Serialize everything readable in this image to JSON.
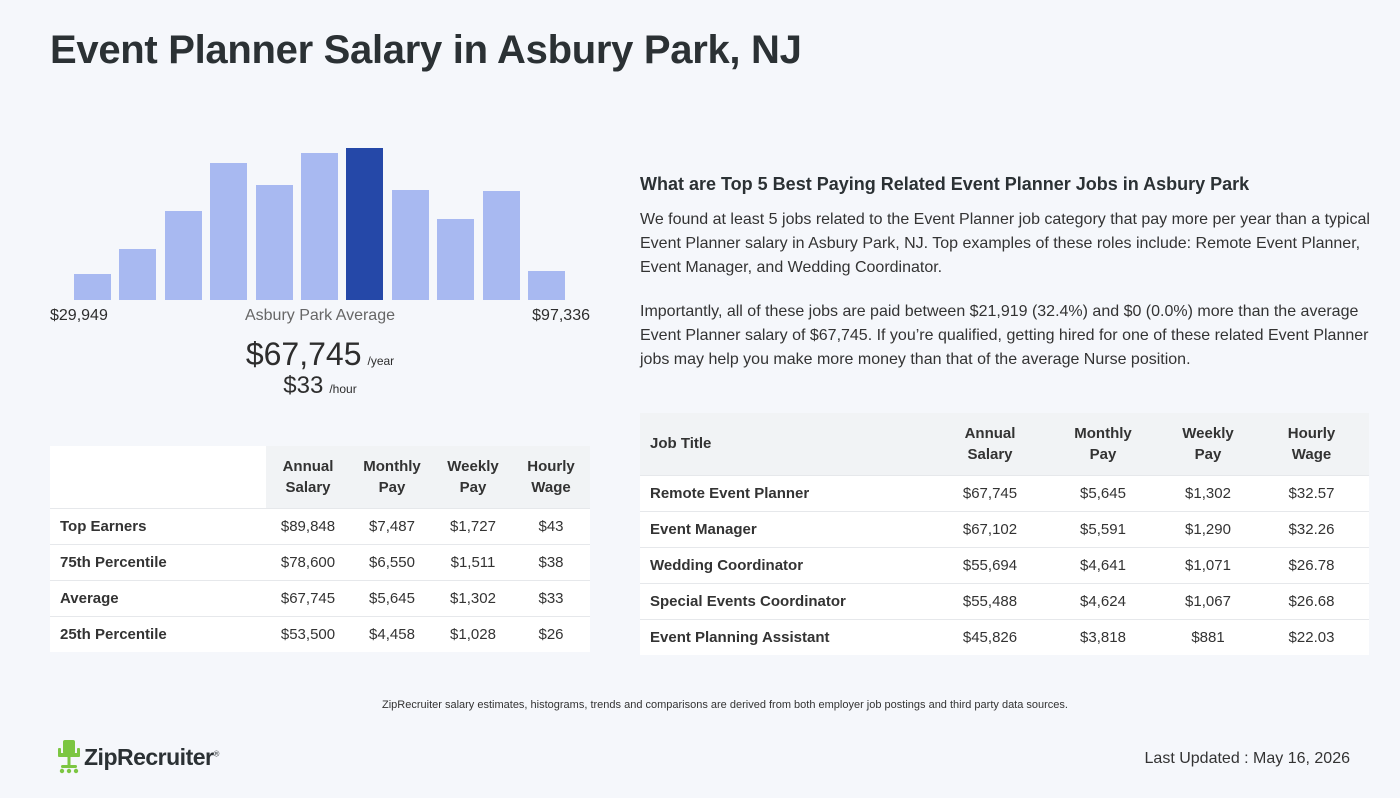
{
  "page": {
    "title": "Event Planner Salary in Asbury Park, NJ"
  },
  "chart_data": {
    "type": "bar",
    "highlight_index": 6,
    "values": [
      26,
      51,
      89,
      137,
      115,
      147,
      152,
      110,
      81,
      109,
      29
    ],
    "range_min_label": "$29,949",
    "range_max_label": "$97,336",
    "colors": {
      "bar": "#a8b9f1",
      "highlight": "#2548a8"
    }
  },
  "summary": {
    "avg_label": "Asbury Park Average",
    "annual": "$67,745",
    "annual_unit": "/year",
    "hourly": "$33",
    "hourly_unit": "/hour"
  },
  "percentile_table": {
    "headers": [
      {
        "line1": "Annual",
        "line2": "Salary"
      },
      {
        "line1": "Monthly",
        "line2": "Pay"
      },
      {
        "line1": "Weekly",
        "line2": "Pay"
      },
      {
        "line1": "Hourly",
        "line2": "Wage"
      }
    ],
    "rows": [
      {
        "label": "Top Earners",
        "annual": "$89,848",
        "monthly": "$7,487",
        "weekly": "$1,727",
        "hourly": "$43"
      },
      {
        "label": "75th Percentile",
        "annual": "$78,600",
        "monthly": "$6,550",
        "weekly": "$1,511",
        "hourly": "$38"
      },
      {
        "label": "Average",
        "annual": "$67,745",
        "monthly": "$5,645",
        "weekly": "$1,302",
        "hourly": "$33"
      },
      {
        "label": "25th Percentile",
        "annual": "$53,500",
        "monthly": "$4,458",
        "weekly": "$1,028",
        "hourly": "$26"
      }
    ]
  },
  "related": {
    "heading": "What are Top 5 Best Paying Related Event Planner Jobs in Asbury Park",
    "para1": "We found at least 5 jobs related to the Event Planner job category that pay more per year than a typical Event Planner salary in Asbury Park, NJ. Top examples of these roles include: Remote Event Planner, Event Manager, and Wedding Coordinator.",
    "para2": "Importantly, all of these jobs are paid between $21,919 (32.4%) and $0 (0.0%) more than the average Event Planner salary of $67,745. If you’re qualified, getting hired for one of these related Event Planner jobs may help you make more money than that of the average Nurse position."
  },
  "jobs_table": {
    "title_header": "Job Title",
    "headers": [
      {
        "line1": "Annual",
        "line2": "Salary"
      },
      {
        "line1": "Monthly",
        "line2": "Pay"
      },
      {
        "line1": "Weekly",
        "line2": "Pay"
      },
      {
        "line1": "Hourly",
        "line2": "Wage"
      }
    ],
    "rows": [
      {
        "title": "Remote Event Planner",
        "annual": "$67,745",
        "monthly": "$5,645",
        "weekly": "$1,302",
        "hourly": "$32.57"
      },
      {
        "title": "Event Manager",
        "annual": "$67,102",
        "monthly": "$5,591",
        "weekly": "$1,290",
        "hourly": "$32.26"
      },
      {
        "title": "Wedding Coordinator",
        "annual": "$55,694",
        "monthly": "$4,641",
        "weekly": "$1,071",
        "hourly": "$26.78"
      },
      {
        "title": "Special Events Coordinator",
        "annual": "$55,488",
        "monthly": "$4,624",
        "weekly": "$1,067",
        "hourly": "$26.68"
      },
      {
        "title": "Event Planning Assistant",
        "annual": "$45,826",
        "monthly": "$3,818",
        "weekly": "$881",
        "hourly": "$22.03"
      }
    ]
  },
  "footer": {
    "disclaimer": "ZipRecruiter salary estimates, histograms, trends and comparisons are derived from both employer job postings and third party data sources.",
    "logo_text": "ZipRecruiter",
    "logo_mark": "®",
    "updated": "Last Updated : May 16, 2026",
    "logo_color": "#7cc642"
  }
}
